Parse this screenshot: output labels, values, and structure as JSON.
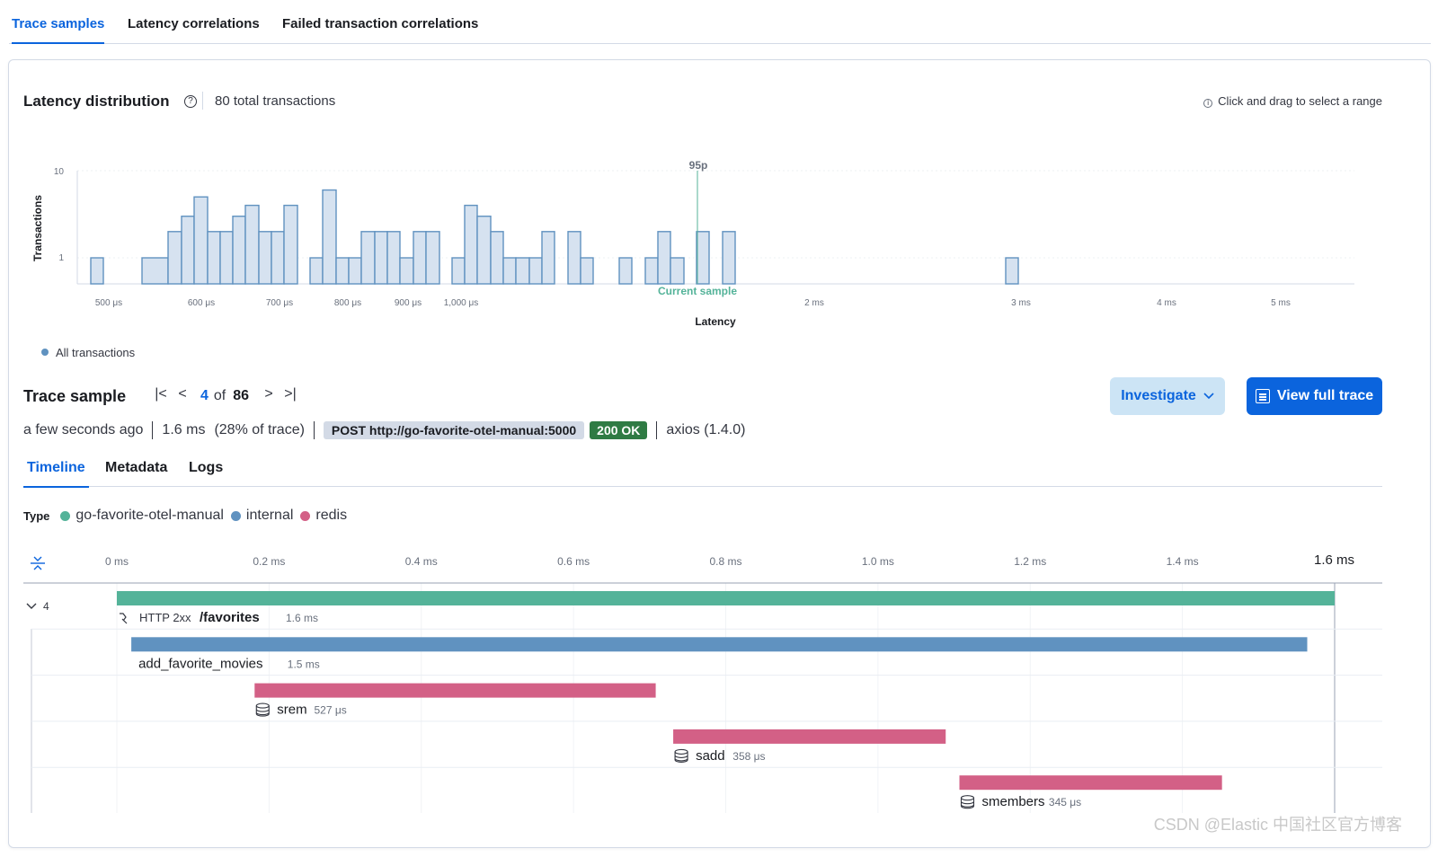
{
  "tabs": [
    "Trace samples",
    "Latency correlations",
    "Failed transaction correlations"
  ],
  "latency": {
    "title": "Latency distribution",
    "total": "80 total transactions",
    "hint": "Click and drag to select a range",
    "legend": "All transactions",
    "percentile_label": "95p",
    "current_sample_label": "Current sample"
  },
  "chart_data": {
    "type": "area",
    "title": "Latency distribution",
    "xlabel": "Latency",
    "ylabel": "Transactions",
    "yscale": "log",
    "yticks": [
      "1",
      "10"
    ],
    "xticks": [
      "500 μs",
      "600 μs",
      "700 μs",
      "800 μs",
      "900 μs",
      "1,000 μs",
      "2 ms",
      "3 ms",
      "4 ms",
      "5 ms"
    ],
    "series": [
      {
        "name": "All transactions",
        "bins": [
          {
            "x": 101,
            "count": 1
          },
          {
            "x": 115,
            "count": 0
          },
          {
            "x": 158,
            "count": 1
          },
          {
            "x": 187,
            "count": 2
          },
          {
            "x": 202,
            "count": 3
          },
          {
            "x": 216,
            "count": 5
          },
          {
            "x": 231,
            "count": 2
          },
          {
            "x": 245,
            "count": 2
          },
          {
            "x": 259,
            "count": 3
          },
          {
            "x": 273,
            "count": 4
          },
          {
            "x": 288,
            "count": 2
          },
          {
            "x": 302,
            "count": 2
          },
          {
            "x": 316,
            "count": 4
          },
          {
            "x": 331,
            "count": 0
          },
          {
            "x": 345,
            "count": 1
          },
          {
            "x": 359,
            "count": 6
          },
          {
            "x": 374,
            "count": 1
          },
          {
            "x": 388,
            "count": 1
          },
          {
            "x": 402,
            "count": 2
          },
          {
            "x": 417,
            "count": 2
          },
          {
            "x": 431,
            "count": 2
          },
          {
            "x": 445,
            "count": 1
          },
          {
            "x": 460,
            "count": 2
          },
          {
            "x": 474,
            "count": 2
          },
          {
            "x": 489,
            "count": 0
          },
          {
            "x": 503,
            "count": 1
          },
          {
            "x": 517,
            "count": 4
          },
          {
            "x": 531,
            "count": 3
          },
          {
            "x": 546,
            "count": 2
          },
          {
            "x": 560,
            "count": 1
          },
          {
            "x": 574,
            "count": 1
          },
          {
            "x": 589,
            "count": 1
          },
          {
            "x": 603,
            "count": 2
          },
          {
            "x": 617,
            "count": 0
          },
          {
            "x": 632,
            "count": 2
          },
          {
            "x": 646,
            "count": 1
          },
          {
            "x": 660,
            "count": 0
          },
          {
            "x": 689,
            "count": 1
          },
          {
            "x": 703,
            "count": 0
          },
          {
            "x": 718,
            "count": 1
          },
          {
            "x": 732,
            "count": 2
          },
          {
            "x": 746,
            "count": 1
          },
          {
            "x": 761,
            "count": 0
          },
          {
            "x": 775,
            "count": 2
          },
          {
            "x": 789,
            "count": 0
          },
          {
            "x": 804,
            "count": 2
          },
          {
            "x": 818,
            "count": 0
          },
          {
            "x": 1119,
            "count": 1
          },
          {
            "x": 1133,
            "count": 0
          }
        ]
      }
    ],
    "p95_x": 776,
    "current_x": 776
  },
  "trace_sample": {
    "title": "Trace sample",
    "current": "4",
    "of": "of",
    "total": "86",
    "investigate": "Investigate",
    "view_full_trace": "View full trace",
    "time_ago": "a few seconds ago",
    "duration": "1.6 ms",
    "percent": "(28% of trace)",
    "url_badge": "POST http://go-favorite-otel-manual:5000",
    "status_badge": "200 OK",
    "agent": "axios (1.4.0)"
  },
  "sub_tabs": [
    "Timeline",
    "Metadata",
    "Logs"
  ],
  "types": {
    "label": "Type",
    "items": [
      {
        "name": "go-favorite-otel-manual",
        "color": "#54b399"
      },
      {
        "name": "internal",
        "color": "#6092c0"
      },
      {
        "name": "redis",
        "color": "#d36086"
      }
    ]
  },
  "timeline": {
    "ticks": [
      "0 ms",
      "0.2 ms",
      "0.4 ms",
      "0.6 ms",
      "0.8 ms",
      "1.0 ms",
      "1.2 ms",
      "1.4 ms",
      "1.6 ms"
    ],
    "total_ms": 1.6,
    "collapse_count": "4",
    "spans": [
      {
        "prefix": "HTTP 2xx",
        "name": "/favorites",
        "duration": "1.6 ms",
        "start_ms": 0.0,
        "dur_ms": 1.6,
        "color": "#54b399",
        "icon": "http-icon"
      },
      {
        "prefix": "",
        "name": "add_favorite_movies",
        "duration": "1.5 ms",
        "start_ms": 0.019,
        "dur_ms": 1.545,
        "color": "#6092c0",
        "icon": ""
      },
      {
        "prefix": "",
        "name": "srem",
        "duration": "527 μs",
        "start_ms": 0.181,
        "dur_ms": 0.527,
        "color": "#d36086",
        "icon": "database-icon"
      },
      {
        "prefix": "",
        "name": "sadd",
        "duration": "358 μs",
        "start_ms": 0.731,
        "dur_ms": 0.358,
        "color": "#d36086",
        "icon": "database-icon"
      },
      {
        "prefix": "",
        "name": "smembers",
        "duration": "345 μs",
        "start_ms": 1.107,
        "dur_ms": 0.345,
        "color": "#d36086",
        "icon": "database-icon"
      }
    ]
  },
  "watermark": "CSDN @Elastic 中国社区官方博客"
}
